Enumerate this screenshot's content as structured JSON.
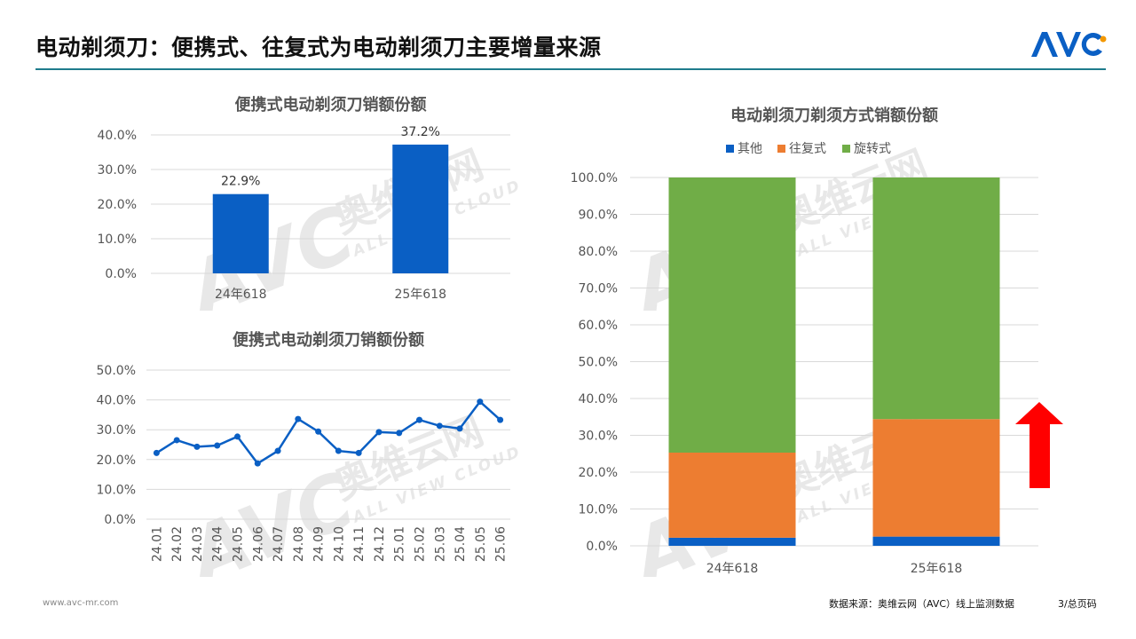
{
  "header": {
    "title": "电动剃须刀：便携式、往复式为电动剃须刀主要增量来源",
    "logo_text": "AVC"
  },
  "watermark": {
    "brand": "AVC",
    "cn": "奥维云网",
    "en": "ALL VIEW CLOUD"
  },
  "colors": {
    "blue": "#0a5fc4",
    "orange": "#ed7d31",
    "green": "#70ad47",
    "arrow": "#ff0000",
    "rule": "#1f7c8c"
  },
  "footer": {
    "url": "www.avc-mr.com",
    "source": "数据来源：奥维云网（AVC）线上监测数据",
    "page": "3/总页码"
  },
  "chart_data": [
    {
      "type": "bar",
      "title": "便携式电动剃须刀销额份额",
      "categories": [
        "24年618",
        "25年618"
      ],
      "values": [
        22.9,
        37.2
      ],
      "data_labels": [
        "22.9%",
        "37.2%"
      ],
      "y_ticks": [
        "0.0%",
        "10.0%",
        "20.0%",
        "30.0%",
        "40.0%"
      ],
      "ylim": [
        0,
        40
      ],
      "grid": true
    },
    {
      "type": "line",
      "title": "便携式电动剃须刀销额份额",
      "x": [
        "24.01",
        "24.02",
        "24.03",
        "24.04",
        "24.05",
        "24.06",
        "24.07",
        "24.08",
        "24.09",
        "24.10",
        "24.11",
        "24.12",
        "25.01",
        "25.02",
        "25.03",
        "25.04",
        "25.05",
        "25.06"
      ],
      "values": [
        22.2,
        26.5,
        24.3,
        24.7,
        27.7,
        18.7,
        22.9,
        33.6,
        29.4,
        22.9,
        22.2,
        29.2,
        28.9,
        33.3,
        31.3,
        30.4,
        39.4,
        33.3
      ],
      "y_ticks": [
        "0.0%",
        "10.0%",
        "20.0%",
        "30.0%",
        "40.0%",
        "50.0%"
      ],
      "ylim": [
        0,
        50
      ],
      "grid": true
    },
    {
      "type": "bar",
      "stacked": true,
      "title": "电动剃须刀剃须方式销额份额",
      "categories": [
        "24年618",
        "25年618"
      ],
      "series": [
        {
          "name": "其他",
          "values": [
            2.2,
            2.5
          ]
        },
        {
          "name": "往复式",
          "values": [
            23.1,
            31.9
          ]
        },
        {
          "name": "旋转式",
          "values": [
            74.7,
            65.6
          ]
        }
      ],
      "y_ticks": [
        "0.0%",
        "10.0%",
        "20.0%",
        "30.0%",
        "40.0%",
        "50.0%",
        "60.0%",
        "70.0%",
        "80.0%",
        "90.0%",
        "100.0%"
      ],
      "ylim": [
        0,
        100
      ],
      "legend": "top",
      "grid": true
    }
  ]
}
